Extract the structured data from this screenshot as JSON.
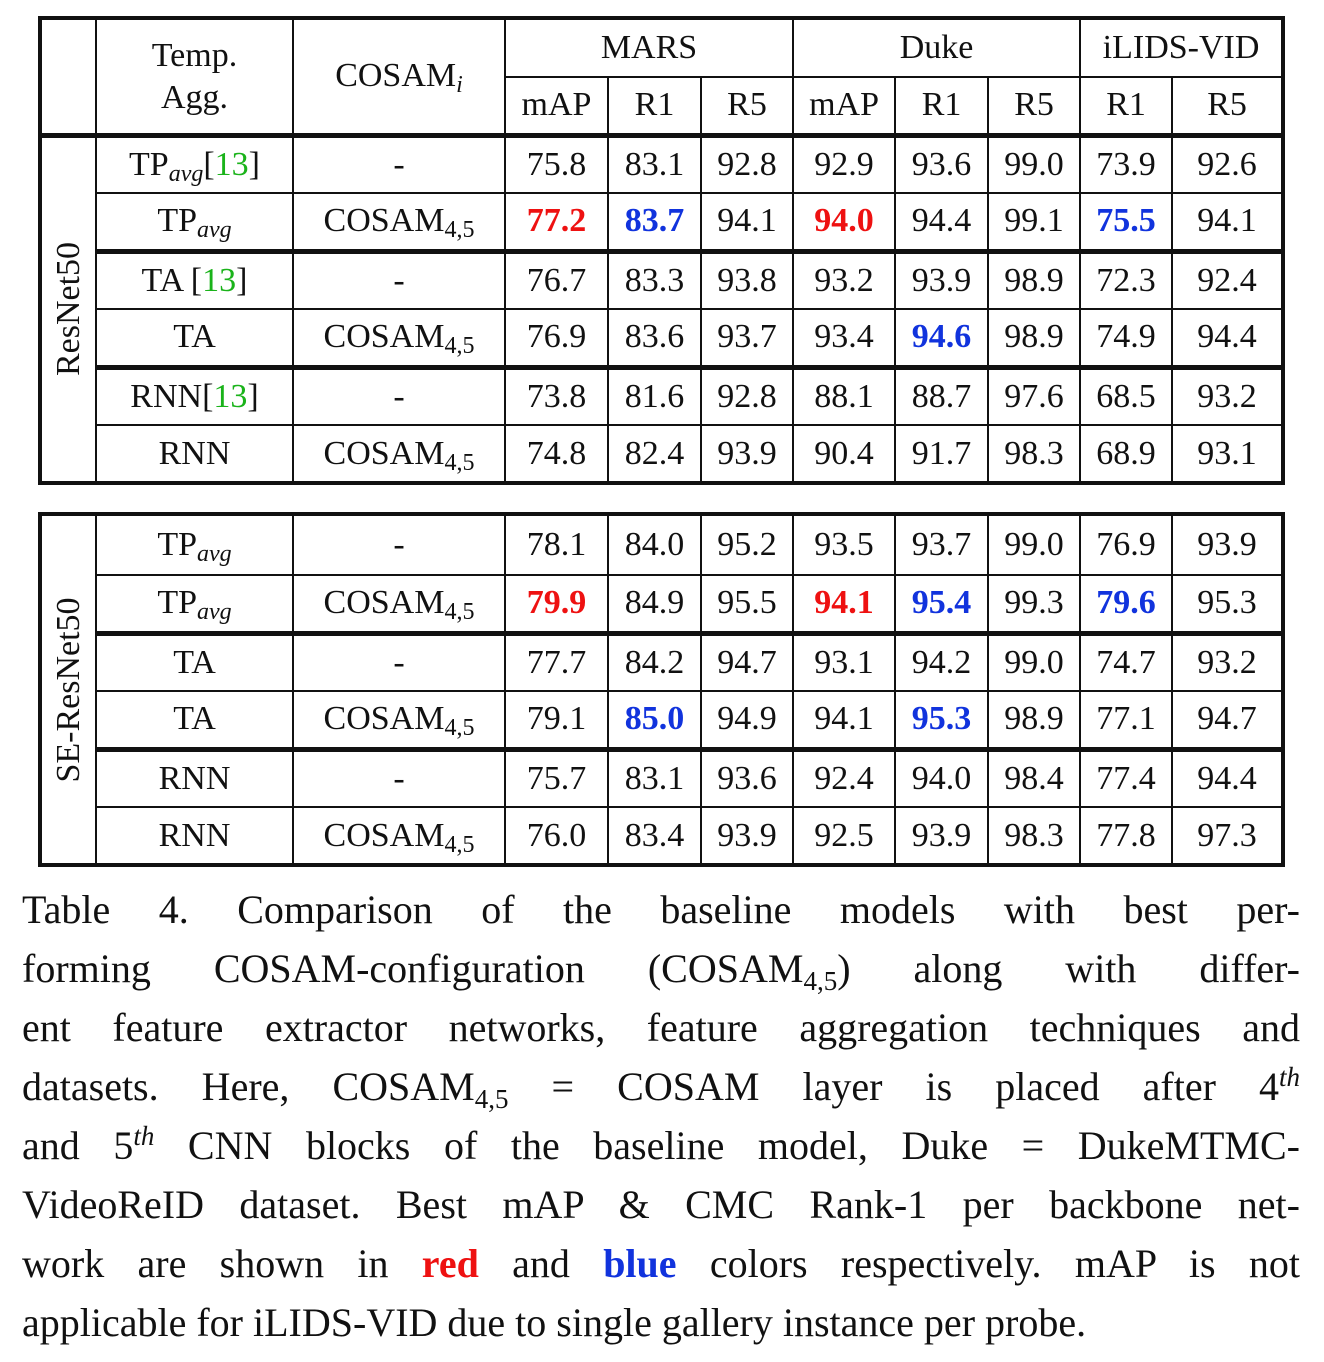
{
  "header": {
    "temp_agg_line1": "Temp.",
    "temp_agg_line2": "Agg.",
    "cosam_base": "COSAM",
    "cosam_sub": "i",
    "datasets": [
      "MARS",
      "Duke",
      "iLIDS-VID"
    ],
    "metrics": [
      "mAP",
      "R1",
      "R5",
      "mAP",
      "R1",
      "R5",
      "R1",
      "R5"
    ]
  },
  "labels": {
    "tp_base": "TP",
    "tp_sub": "avg",
    "ta": "TA",
    "rnn": "RNN",
    "ref_open": "[",
    "ref_num": "13",
    "ref_close": "]",
    "dash": "-",
    "cosam_base": "COSAM",
    "cosam_sub": "4,5"
  },
  "backbones": [
    {
      "name": "ResNet50",
      "rows": [
        {
          "agg": "TPavg[13]",
          "cosam": "-",
          "values": [
            "75.8",
            "83.1",
            "92.8",
            "92.9",
            "93.6",
            "99.0",
            "73.9",
            "92.6"
          ]
        },
        {
          "agg": "TPavg",
          "cosam": "COSAM4,5",
          "values": [
            "77.2",
            "83.7",
            "94.1",
            "94.0",
            "94.4",
            "99.1",
            "75.5",
            "94.1"
          ]
        },
        {
          "agg": "TA [13]",
          "cosam": "-",
          "values": [
            "76.7",
            "83.3",
            "93.8",
            "93.2",
            "93.9",
            "98.9",
            "72.3",
            "92.4"
          ]
        },
        {
          "agg": "TA",
          "cosam": "COSAM4,5",
          "values": [
            "76.9",
            "83.6",
            "93.7",
            "93.4",
            "94.6",
            "98.9",
            "74.9",
            "94.4"
          ]
        },
        {
          "agg": "RNN[13]",
          "cosam": "-",
          "values": [
            "73.8",
            "81.6",
            "92.8",
            "88.1",
            "88.7",
            "97.6",
            "68.5",
            "93.2"
          ]
        },
        {
          "agg": "RNN",
          "cosam": "COSAM4,5",
          "values": [
            "74.8",
            "82.4",
            "93.9",
            "90.4",
            "91.7",
            "98.3",
            "68.9",
            "93.1"
          ]
        }
      ]
    },
    {
      "name": "SE-ResNet50",
      "rows": [
        {
          "agg": "TPavg",
          "cosam": "-",
          "values": [
            "78.1",
            "84.0",
            "95.2",
            "93.5",
            "93.7",
            "99.0",
            "76.9",
            "93.9"
          ]
        },
        {
          "agg": "TPavg",
          "cosam": "COSAM4,5",
          "values": [
            "79.9",
            "84.9",
            "95.5",
            "94.1",
            "95.4",
            "99.3",
            "79.6",
            "95.3"
          ]
        },
        {
          "agg": "TA",
          "cosam": "-",
          "values": [
            "77.7",
            "84.2",
            "94.7",
            "93.1",
            "94.2",
            "99.0",
            "74.7",
            "93.2"
          ]
        },
        {
          "agg": "TA",
          "cosam": "COSAM4,5",
          "values": [
            "79.1",
            "85.0",
            "94.9",
            "94.1",
            "95.3",
            "98.9",
            "77.1",
            "94.7"
          ]
        },
        {
          "agg": "RNN",
          "cosam": "-",
          "values": [
            "75.7",
            "83.1",
            "93.6",
            "92.4",
            "94.0",
            "98.4",
            "77.4",
            "94.4"
          ]
        },
        {
          "agg": "RNN",
          "cosam": "COSAM4,5",
          "values": [
            "76.0",
            "83.4",
            "93.9",
            "92.5",
            "93.9",
            "98.3",
            "77.8",
            "97.3"
          ]
        }
      ]
    }
  ],
  "highlight_colors": {
    "red": "#ee1111",
    "blue": "#1133dd"
  },
  "caption": {
    "l1": "Table 4. Comparison of the baseline models with best per-",
    "l2a": "forming COSAM-configuration (COSAM",
    "l2sub": "4,5",
    "l2b": ") along with differ-",
    "l3": "ent feature extractor networks, feature aggregation techniques and",
    "l4a": "datasets.  Here, COSAM",
    "l4sub": "4,5",
    "l4b": " = COSAM layer is placed after 4",
    "l4sup": "th",
    "l5a": "and 5",
    "l5sup": "th",
    "l5b": " CNN blocks of the baseline model, Duke = DukeMTMC-",
    "l6": "VideoReID dataset. Best mAP & CMC Rank-1 per backbone net-",
    "l7a": "work are shown in ",
    "red_word": "red",
    "l7b": " and ",
    "blue_word": "blue",
    "l7c": " colors respectively.  mAP is not",
    "l8": "applicable for iLIDS-VID due to single gallery instance per probe."
  }
}
